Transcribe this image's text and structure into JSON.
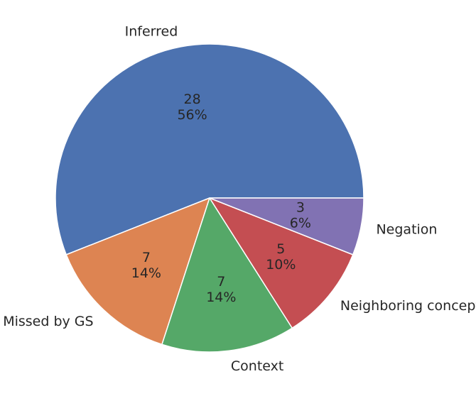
{
  "chart_data": {
    "type": "pie",
    "start_angle_deg": 0,
    "direction": "counterclockwise",
    "edge_color": "#ffffff",
    "slices": [
      {
        "label": "Inferred",
        "value": 28,
        "percent": "56%",
        "color": "#4c72b0"
      },
      {
        "label": "Missed by GS",
        "value": 7,
        "percent": "14%",
        "color": "#dd8452"
      },
      {
        "label": "Context",
        "value": 7,
        "percent": "14%",
        "color": "#55a868"
      },
      {
        "label": "Neighboring concept",
        "value": 5,
        "percent": "10%",
        "color": "#c44e52"
      },
      {
        "label": "Negation",
        "value": 3,
        "percent": "6%",
        "color": "#8172b3"
      }
    ]
  }
}
